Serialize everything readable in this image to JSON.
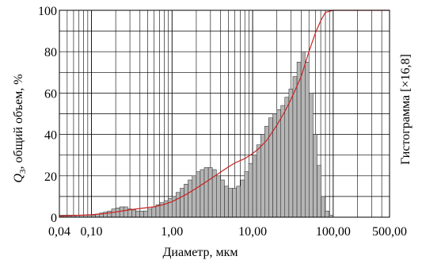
{
  "chart_data": {
    "type": "bar",
    "xscale": "log",
    "xlim": [
      0.04,
      500
    ],
    "ylim": [
      0,
      100
    ],
    "grid": true,
    "xlabel": "Диаметр, мкм",
    "ylabel_main": "Q",
    "ylabel_sub": "3",
    "ylabel_rest": ", общий объем, %",
    "ylabel_right": "Гистограмма [×16,8]",
    "x_ticks": [
      {
        "value": 0.04,
        "label": "0,04"
      },
      {
        "value": 0.1,
        "label": "0,10"
      },
      {
        "value": 1,
        "label": "1,00"
      },
      {
        "value": 10,
        "label": "10,00"
      },
      {
        "value": 100,
        "label": "100,00"
      },
      {
        "value": 500,
        "label": "500,00"
      }
    ],
    "y_ticks": [
      {
        "value": 0,
        "label": "0"
      },
      {
        "value": 20,
        "label": "20"
      },
      {
        "value": 40,
        "label": "40"
      },
      {
        "value": 60,
        "label": "60"
      },
      {
        "value": 80,
        "label": "80"
      },
      {
        "value": 100,
        "label": "100"
      }
    ],
    "colors": {
      "bars": "#b5b5b5",
      "bar_stroke": "#222222",
      "curve": "#cc2222",
      "grid": "#000000"
    },
    "histogram": {
      "x": [
        0.04,
        0.045,
        0.05,
        0.056,
        0.063,
        0.071,
        0.08,
        0.09,
        0.1,
        0.112,
        0.126,
        0.141,
        0.158,
        0.178,
        0.2,
        0.224,
        0.251,
        0.282,
        0.316,
        0.355,
        0.398,
        0.447,
        0.501,
        0.562,
        0.631,
        0.708,
        0.794,
        0.891,
        1.0,
        1.12,
        1.26,
        1.41,
        1.58,
        1.78,
        2.0,
        2.24,
        2.51,
        2.82,
        3.16,
        3.55,
        3.98,
        4.47,
        5.01,
        5.62,
        6.31,
        7.08,
        7.94,
        8.91,
        10.0,
        11.2,
        12.6,
        14.1,
        15.8,
        17.8,
        20.0,
        22.4,
        25.1,
        28.2,
        31.6,
        35.5,
        39.8,
        44.7,
        50.1,
        56.2,
        63.1,
        70.8,
        79.4,
        89.1
      ],
      "values": [
        1.0,
        1.0,
        1.0,
        1.0,
        1.0,
        1.0,
        1.0,
        1.0,
        1.0,
        1.5,
        2,
        2.5,
        3,
        4,
        4.5,
        5,
        5,
        4,
        3.5,
        3,
        3,
        3,
        4,
        5,
        6,
        7,
        8,
        9,
        10,
        12,
        14,
        16,
        18,
        20,
        22,
        23,
        24,
        24,
        23,
        20,
        18,
        15,
        14,
        14,
        15,
        18,
        22,
        26,
        30,
        35,
        40,
        44,
        48,
        50,
        52,
        54,
        58,
        62,
        68,
        75,
        80,
        75,
        60,
        40,
        25,
        10,
        3,
        1
      ]
    },
    "cumulative": {
      "x": [
        0.04,
        0.06,
        0.1,
        0.15,
        0.2,
        0.3,
        0.4,
        0.6,
        0.8,
        1.0,
        1.5,
        2.0,
        3.0,
        4.0,
        5.0,
        6.0,
        8.0,
        10.0,
        12.0,
        15.0,
        20.0,
        25.0,
        30.0,
        40.0,
        50.0,
        60.0,
        70.0,
        80.0,
        100.0,
        500.0
      ],
      "values": [
        0.5,
        0.8,
        1.2,
        1.8,
        2.5,
        3.6,
        4.2,
        5.0,
        6.2,
        7.5,
        11,
        14,
        18.5,
        21.8,
        24.3,
        26.2,
        28.3,
        30.8,
        33.2,
        37.2,
        44.5,
        51,
        57,
        68,
        80,
        89,
        95,
        99,
        100,
        100
      ]
    }
  }
}
